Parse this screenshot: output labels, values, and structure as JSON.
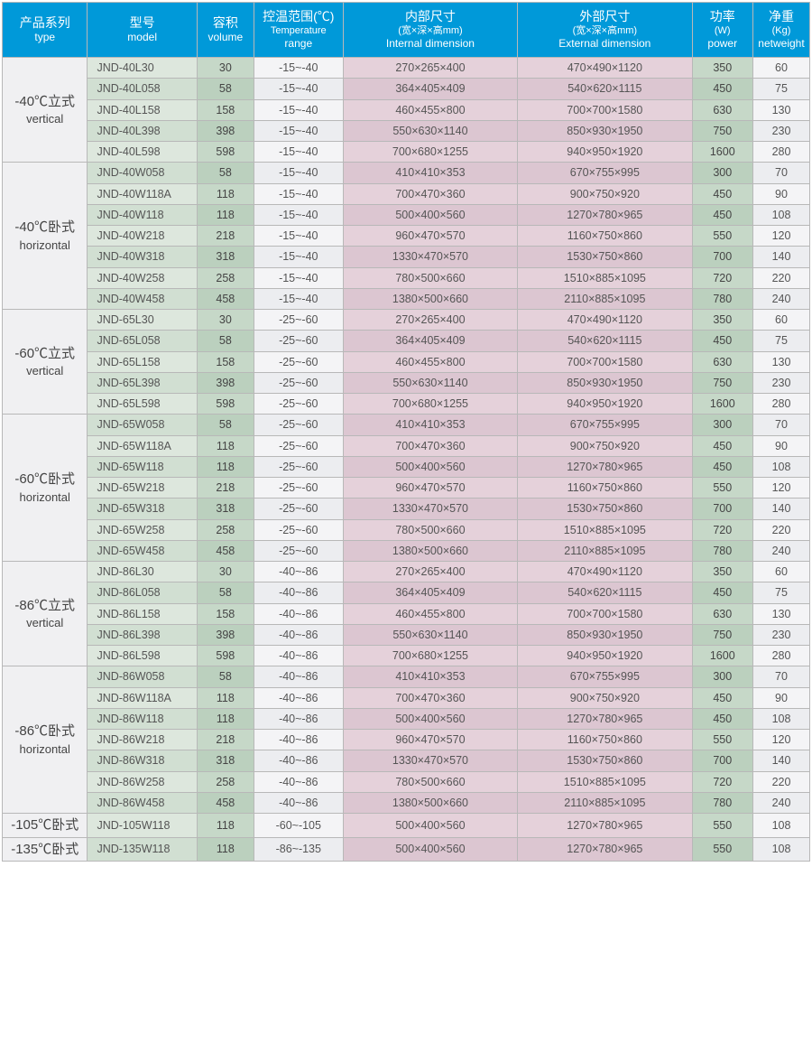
{
  "table": {
    "columns": [
      {
        "key": "type",
        "cn": "产品系列",
        "en": "type",
        "sub": ""
      },
      {
        "key": "model",
        "cn": "型号",
        "en": "model",
        "sub": ""
      },
      {
        "key": "volume",
        "cn": "容积",
        "en": "volume",
        "sub": ""
      },
      {
        "key": "temp",
        "cn": "控温范围(℃)",
        "en": "range",
        "sub": "Temperature"
      },
      {
        "key": "intdim",
        "cn": "内部尺寸",
        "en": "Internal dimension",
        "sub": "(宽×深×高mm)"
      },
      {
        "key": "extdim",
        "cn": "外部尺寸",
        "en": "External dimension",
        "sub": "(宽×深×高mm)"
      },
      {
        "key": "power",
        "cn": "功率",
        "en": "power",
        "sub": "(W)"
      },
      {
        "key": "weight",
        "cn": "净重",
        "en": "netweight",
        "sub": "(Kg)"
      }
    ],
    "groups": [
      {
        "type_cn": "-40℃立式",
        "type_en": "vertical",
        "rows": [
          [
            "JND-40L30",
            "30",
            "-15~-40",
            "270×265×400",
            "470×490×1120",
            "350",
            "60"
          ],
          [
            "JND-40L058",
            "58",
            "-15~-40",
            "364×405×409",
            "540×620×1115",
            "450",
            "75"
          ],
          [
            "JND-40L158",
            "158",
            "-15~-40",
            "460×455×800",
            "700×700×1580",
            "630",
            "130"
          ],
          [
            "JND-40L398",
            "398",
            "-15~-40",
            "550×630×1140",
            "850×930×1950",
            "750",
            "230"
          ],
          [
            "JND-40L598",
            "598",
            "-15~-40",
            "700×680×1255",
            "940×950×1920",
            "1600",
            "280"
          ]
        ]
      },
      {
        "type_cn": "-40℃卧式",
        "type_en": "horizontal",
        "rows": [
          [
            "JND-40W058",
            "58",
            "-15~-40",
            "410×410×353",
            "670×755×995",
            "300",
            "70"
          ],
          [
            "JND-40W118A",
            "118",
            "-15~-40",
            "700×470×360",
            "900×750×920",
            "450",
            "90"
          ],
          [
            "JND-40W118",
            "118",
            "-15~-40",
            "500×400×560",
            "1270×780×965",
            "450",
            "108"
          ],
          [
            "JND-40W218",
            "218",
            "-15~-40",
            "960×470×570",
            "1160×750×860",
            "550",
            "120"
          ],
          [
            "JND-40W318",
            "318",
            "-15~-40",
            "1330×470×570",
            "1530×750×860",
            "700",
            "140"
          ],
          [
            "JND-40W258",
            "258",
            "-15~-40",
            "780×500×660",
            "1510×885×1095",
            "720",
            "220"
          ],
          [
            "JND-40W458",
            "458",
            "-15~-40",
            "1380×500×660",
            "2110×885×1095",
            "780",
            "240"
          ]
        ]
      },
      {
        "type_cn": "-60℃立式",
        "type_en": "vertical",
        "rows": [
          [
            "JND-65L30",
            "30",
            "-25~-60",
            "270×265×400",
            "470×490×1120",
            "350",
            "60"
          ],
          [
            "JND-65L058",
            "58",
            "-25~-60",
            "364×405×409",
            "540×620×1115",
            "450",
            "75"
          ],
          [
            "JND-65L158",
            "158",
            "-25~-60",
            "460×455×800",
            "700×700×1580",
            "630",
            "130"
          ],
          [
            "JND-65L398",
            "398",
            "-25~-60",
            "550×630×1140",
            "850×930×1950",
            "750",
            "230"
          ],
          [
            "JND-65L598",
            "598",
            "-25~-60",
            "700×680×1255",
            "940×950×1920",
            "1600",
            "280"
          ]
        ]
      },
      {
        "type_cn": "-60℃卧式",
        "type_en": "horizontal",
        "rows": [
          [
            "JND-65W058",
            "58",
            "-25~-60",
            "410×410×353",
            "670×755×995",
            "300",
            "70"
          ],
          [
            "JND-65W118A",
            "118",
            "-25~-60",
            "700×470×360",
            "900×750×920",
            "450",
            "90"
          ],
          [
            "JND-65W118",
            "118",
            "-25~-60",
            "500×400×560",
            "1270×780×965",
            "450",
            "108"
          ],
          [
            "JND-65W218",
            "218",
            "-25~-60",
            "960×470×570",
            "1160×750×860",
            "550",
            "120"
          ],
          [
            "JND-65W318",
            "318",
            "-25~-60",
            "1330×470×570",
            "1530×750×860",
            "700",
            "140"
          ],
          [
            "JND-65W258",
            "258",
            "-25~-60",
            "780×500×660",
            "1510×885×1095",
            "720",
            "220"
          ],
          [
            "JND-65W458",
            "458",
            "-25~-60",
            "1380×500×660",
            "2110×885×1095",
            "780",
            "240"
          ]
        ]
      },
      {
        "type_cn": "-86℃立式",
        "type_en": "vertical",
        "rows": [
          [
            "JND-86L30",
            "30",
            "-40~-86",
            "270×265×400",
            "470×490×1120",
            "350",
            "60"
          ],
          [
            "JND-86L058",
            "58",
            "-40~-86",
            "364×405×409",
            "540×620×1115",
            "450",
            "75"
          ],
          [
            "JND-86L158",
            "158",
            "-40~-86",
            "460×455×800",
            "700×700×1580",
            "630",
            "130"
          ],
          [
            "JND-86L398",
            "398",
            "-40~-86",
            "550×630×1140",
            "850×930×1950",
            "750",
            "230"
          ],
          [
            "JND-86L598",
            "598",
            "-40~-86",
            "700×680×1255",
            "940×950×1920",
            "1600",
            "280"
          ]
        ]
      },
      {
        "type_cn": "-86℃卧式",
        "type_en": "horizontal",
        "rows": [
          [
            "JND-86W058",
            "58",
            "-40~-86",
            "410×410×353",
            "670×755×995",
            "300",
            "70"
          ],
          [
            "JND-86W118A",
            "118",
            "-40~-86",
            "700×470×360",
            "900×750×920",
            "450",
            "90"
          ],
          [
            "JND-86W118",
            "118",
            "-40~-86",
            "500×400×560",
            "1270×780×965",
            "450",
            "108"
          ],
          [
            "JND-86W218",
            "218",
            "-40~-86",
            "960×470×570",
            "1160×750×860",
            "550",
            "120"
          ],
          [
            "JND-86W318",
            "318",
            "-40~-86",
            "1330×470×570",
            "1530×750×860",
            "700",
            "140"
          ],
          [
            "JND-86W258",
            "258",
            "-40~-86",
            "780×500×660",
            "1510×885×1095",
            "720",
            "220"
          ],
          [
            "JND-86W458",
            "458",
            "-40~-86",
            "1380×500×660",
            "2110×885×1095",
            "780",
            "240"
          ]
        ]
      },
      {
        "type_cn": "-105℃卧式",
        "type_en": "",
        "rows": [
          [
            "JND-105W118",
            "118",
            "-60~-105",
            "500×400×560",
            "1270×780×965",
            "550",
            "108"
          ]
        ]
      },
      {
        "type_cn": "-135℃卧式",
        "type_en": "",
        "rows": [
          [
            "JND-135W118",
            "118",
            "-86~-135",
            "500×400×560",
            "1270×780×965",
            "550",
            "108"
          ]
        ]
      }
    ],
    "colors": {
      "header_bg": "#0099d9",
      "type_bg": "#f0f0f2",
      "model_bg": "#dde7dd",
      "volume_bg": "#c6d8c8",
      "temp_bg": "#f4f4f6",
      "dim_bg": "#e5d1da",
      "power_bg": "#c6d8c8",
      "weight_bg": "#f4f4f6",
      "border": "#b8b8b8"
    }
  }
}
